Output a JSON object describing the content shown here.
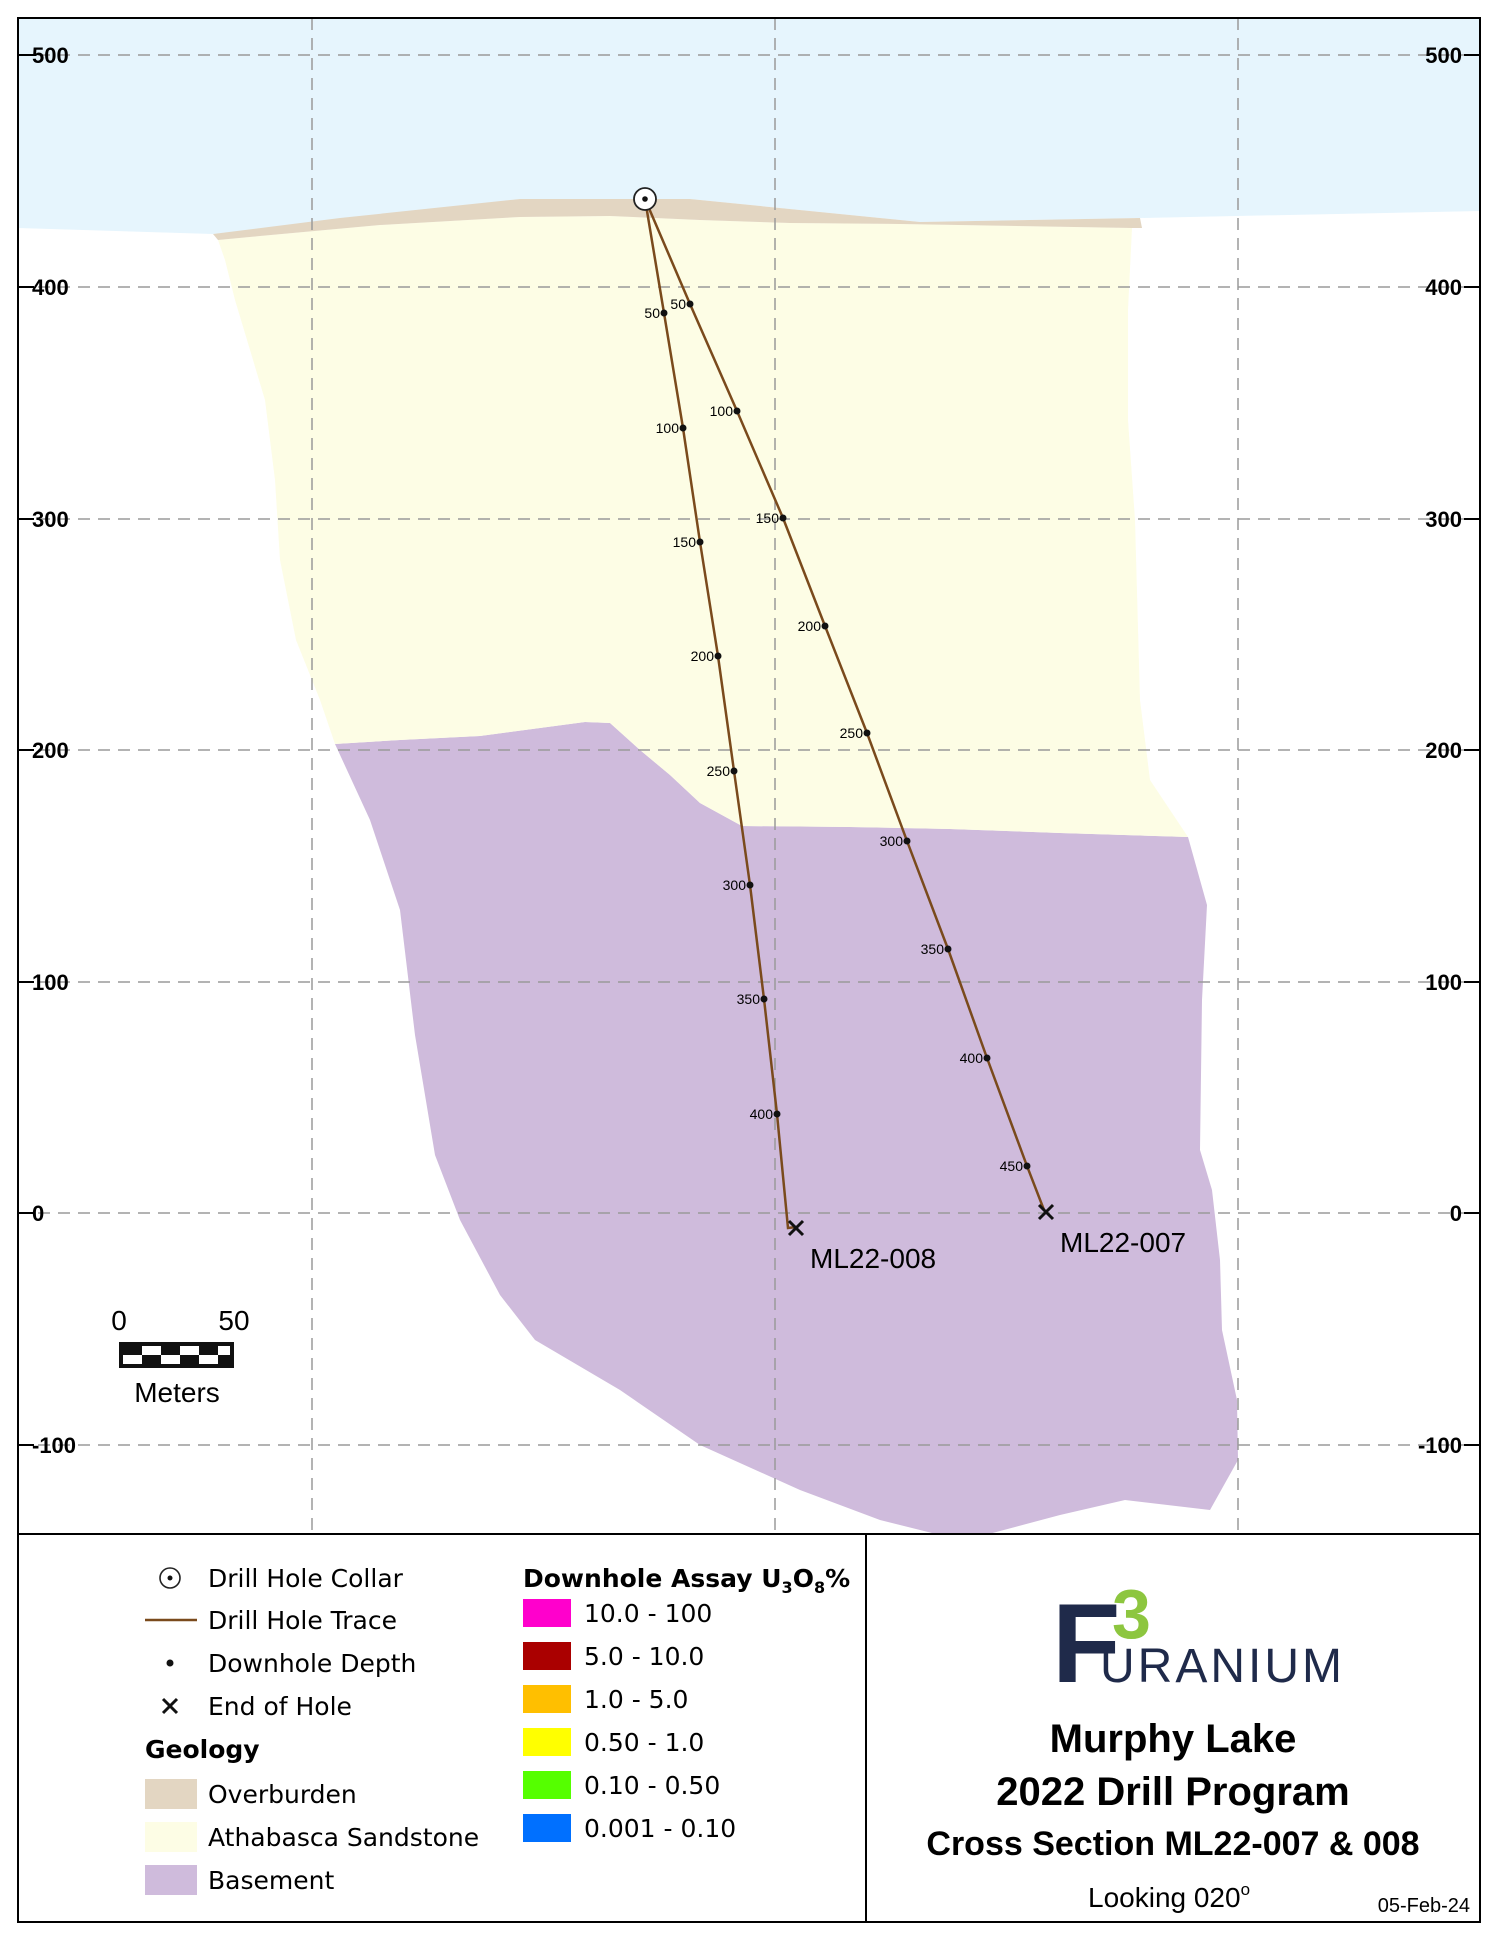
{
  "y_axis": {
    "ticks": [
      500,
      400,
      300,
      200,
      100,
      0,
      -100
    ],
    "tick_labels": [
      "500",
      "400",
      "300",
      "200",
      "100",
      "0",
      "-100"
    ]
  },
  "geology_units": [
    "Overburden",
    "Athabasca Sandstone",
    "Basement"
  ],
  "drill_holes": [
    {
      "id": "ML22-008",
      "depth_labels": [
        "50",
        "100",
        "150",
        "200",
        "250",
        "300",
        "350",
        "400"
      ]
    },
    {
      "id": "ML22-007",
      "depth_labels": [
        "50",
        "100",
        "150",
        "200",
        "250",
        "300",
        "350",
        "400",
        "450"
      ]
    }
  ],
  "scale_bar": {
    "start": "0",
    "end": "50",
    "unit": "Meters"
  },
  "legend": {
    "symbols": [
      {
        "label": "Drill Hole Collar",
        "icon": "collar-icon"
      },
      {
        "label": "Drill Hole Trace",
        "icon": "trace-line-icon"
      },
      {
        "label": "Downhole Depth",
        "icon": "depth-dot-icon"
      },
      {
        "label": "End of Hole",
        "icon": "end-of-hole-x-icon"
      }
    ],
    "geology_title": "Geology",
    "geology": [
      {
        "label": "Overburden",
        "color": "#e3d6c2"
      },
      {
        "label": "Athabasca Sandstone",
        "color": "#fdfde5"
      },
      {
        "label": "Basement",
        "color": "#cfbbdc"
      }
    ],
    "assay_title_prefix": "Downhole Assay U",
    "assay_title_sub1": "3",
    "assay_title_mid": "O",
    "assay_title_sub2": "8",
    "assay_title_suffix": "%",
    "assay": [
      {
        "label": "10.0 - 100",
        "color": "#ff00cc"
      },
      {
        "label": "5.0 - 10.0",
        "color": "#aa0000"
      },
      {
        "label": "1.0 - 5.0",
        "color": "#ffbf00"
      },
      {
        "label": "0.50 - 1.0",
        "color": "#ffff00"
      },
      {
        "label": "0.10 - 0.50",
        "color": "#55ff00"
      },
      {
        "label": "0.001 - 0.10",
        "color": "#0070ff"
      }
    ]
  },
  "title_block": {
    "logo_f": "F",
    "logo_3": "3",
    "logo_text": "URANIUM",
    "line1": "Murphy Lake",
    "line2": "2022 Drill Program",
    "line3": "Cross Section ML22-007 & 008",
    "looking_prefix": "Looking 020",
    "looking_suffix": "o",
    "date": "05-Feb-24"
  },
  "colors": {
    "sky": "#e6f5fd",
    "trace": "#7a4a1c",
    "logo_navy": "#1f2a4a",
    "logo_green": "#8dc63f"
  }
}
